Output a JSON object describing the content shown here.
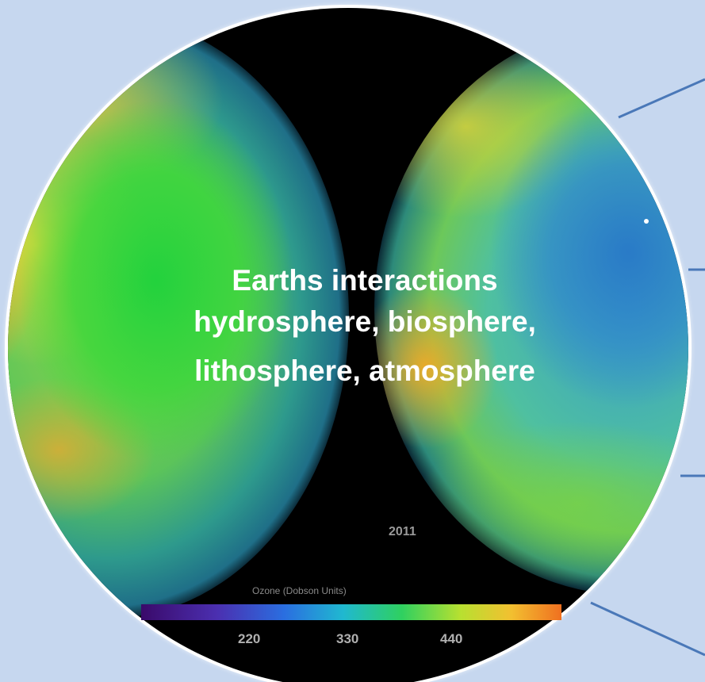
{
  "caption": {
    "line1": "Earths interactions",
    "line2": "hydrosphere, biosphere,",
    "line3": "lithosphere, atmosphere"
  },
  "image": {
    "year": "2011",
    "legend_title": "Ozone (Dobson Units)",
    "ticks": [
      "220",
      "330",
      "440"
    ]
  },
  "colors": {
    "background": "#c6d7ef",
    "connector": "#4a78b8",
    "caption_text": "#ffffff"
  }
}
